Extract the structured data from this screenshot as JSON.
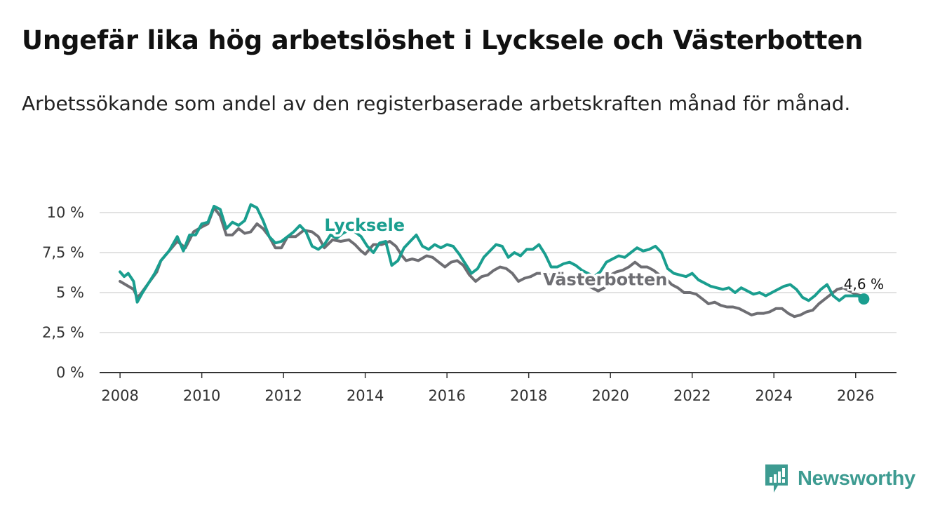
{
  "title": "Ungefär lika hög arbetslöshet i Lycksele och Västerbotten",
  "subtitle": "Arbetssökande som andel av den registerbaserade arbetskraften månad för månad.",
  "brand": {
    "name": "Newsworthy",
    "color": "#3d9b91",
    "icon": "newsworthy-logo-icon"
  },
  "chart_data": {
    "type": "line",
    "title": "Ungefär lika hög arbetslöshet i Lycksele och Västerbotten",
    "xlabel": "",
    "ylabel": "",
    "xlim": [
      2007.5,
      2027.0
    ],
    "ylim": [
      0,
      10
    ],
    "yticks": [
      0,
      2.5,
      5,
      7.5,
      10
    ],
    "ytick_labels": [
      "0 %",
      "2,5 %",
      "5 %",
      "7,5 %",
      "10 %"
    ],
    "xticks": [
      2008,
      2010,
      2012,
      2014,
      2016,
      2018,
      2020,
      2022,
      2024,
      2026
    ],
    "xtick_labels": [
      "2008",
      "2010",
      "2012",
      "2014",
      "2016",
      "2018",
      "2020",
      "2022",
      "2024",
      "2026"
    ],
    "grid": true,
    "series": [
      {
        "name": "Västerbotten",
        "label": "Västerbotten",
        "color": "#6e6e73",
        "points": [
          [
            2008.0,
            5.7
          ],
          [
            2008.2,
            5.4
          ],
          [
            2008.33,
            5.2
          ],
          [
            2008.42,
            4.7
          ],
          [
            2008.5,
            4.9
          ],
          [
            2008.7,
            5.6
          ],
          [
            2008.9,
            6.3
          ],
          [
            2009.0,
            7.0
          ],
          [
            2009.2,
            7.6
          ],
          [
            2009.4,
            8.2
          ],
          [
            2009.6,
            7.8
          ],
          [
            2009.8,
            8.8
          ],
          [
            2010.0,
            9.1
          ],
          [
            2010.15,
            9.3
          ],
          [
            2010.3,
            10.3
          ],
          [
            2010.45,
            9.8
          ],
          [
            2010.6,
            8.6
          ],
          [
            2010.75,
            8.6
          ],
          [
            2010.9,
            9.0
          ],
          [
            2011.05,
            8.7
          ],
          [
            2011.2,
            8.8
          ],
          [
            2011.35,
            9.3
          ],
          [
            2011.5,
            9.0
          ],
          [
            2011.65,
            8.5
          ],
          [
            2011.8,
            7.8
          ],
          [
            2011.95,
            7.8
          ],
          [
            2012.1,
            8.5
          ],
          [
            2012.3,
            8.5
          ],
          [
            2012.5,
            8.9
          ],
          [
            2012.7,
            8.8
          ],
          [
            2012.85,
            8.5
          ],
          [
            2013.0,
            7.8
          ],
          [
            2013.2,
            8.3
          ],
          [
            2013.4,
            8.2
          ],
          [
            2013.6,
            8.3
          ],
          [
            2013.75,
            8.0
          ],
          [
            2013.9,
            7.6
          ],
          [
            2014.0,
            7.4
          ],
          [
            2014.2,
            8.0
          ],
          [
            2014.4,
            8.0
          ],
          [
            2014.6,
            8.2
          ],
          [
            2014.75,
            7.9
          ],
          [
            2014.9,
            7.3
          ],
          [
            2015.0,
            7.0
          ],
          [
            2015.15,
            7.1
          ],
          [
            2015.3,
            7.0
          ],
          [
            2015.5,
            7.3
          ],
          [
            2015.65,
            7.2
          ],
          [
            2015.8,
            6.9
          ],
          [
            2015.95,
            6.6
          ],
          [
            2016.1,
            6.9
          ],
          [
            2016.25,
            7.0
          ],
          [
            2016.4,
            6.7
          ],
          [
            2016.55,
            6.1
          ],
          [
            2016.7,
            5.7
          ],
          [
            2016.85,
            6.0
          ],
          [
            2017.0,
            6.1
          ],
          [
            2017.15,
            6.4
          ],
          [
            2017.3,
            6.6
          ],
          [
            2017.45,
            6.5
          ],
          [
            2017.6,
            6.2
          ],
          [
            2017.75,
            5.7
          ],
          [
            2017.9,
            5.9
          ],
          [
            2018.05,
            6.0
          ],
          [
            2018.2,
            6.2
          ],
          [
            2018.35,
            6.2
          ],
          [
            2018.5,
            6.1
          ],
          [
            2018.65,
            5.6
          ],
          [
            2018.8,
            5.6
          ],
          [
            2018.95,
            5.7
          ],
          [
            2019.1,
            5.8
          ],
          [
            2019.25,
            5.6
          ],
          [
            2019.4,
            5.5
          ],
          [
            2019.55,
            5.3
          ],
          [
            2019.7,
            5.1
          ],
          [
            2019.85,
            5.3
          ],
          [
            2020.0,
            6.1
          ],
          [
            2020.15,
            6.3
          ],
          [
            2020.3,
            6.4
          ],
          [
            2020.45,
            6.6
          ],
          [
            2020.6,
            6.9
          ],
          [
            2020.75,
            6.6
          ],
          [
            2020.9,
            6.6
          ],
          [
            2021.05,
            6.4
          ],
          [
            2021.2,
            6.1
          ],
          [
            2021.35,
            5.9
          ],
          [
            2021.5,
            5.5
          ],
          [
            2021.65,
            5.3
          ],
          [
            2021.8,
            5.0
          ],
          [
            2021.95,
            5.0
          ],
          [
            2022.1,
            4.9
          ],
          [
            2022.25,
            4.6
          ],
          [
            2022.4,
            4.3
          ],
          [
            2022.55,
            4.4
          ],
          [
            2022.7,
            4.2
          ],
          [
            2022.85,
            4.1
          ],
          [
            2023.0,
            4.1
          ],
          [
            2023.15,
            4.0
          ],
          [
            2023.3,
            3.8
          ],
          [
            2023.45,
            3.6
          ],
          [
            2023.6,
            3.7
          ],
          [
            2023.75,
            3.7
          ],
          [
            2023.9,
            3.8
          ],
          [
            2024.05,
            4.0
          ],
          [
            2024.2,
            4.0
          ],
          [
            2024.35,
            3.7
          ],
          [
            2024.5,
            3.5
          ],
          [
            2024.65,
            3.6
          ],
          [
            2024.8,
            3.8
          ],
          [
            2024.95,
            3.9
          ],
          [
            2025.1,
            4.3
          ],
          [
            2025.25,
            4.6
          ],
          [
            2025.4,
            4.9
          ],
          [
            2025.55,
            5.2
          ],
          [
            2025.7,
            5.3
          ],
          [
            2025.85,
            5.1
          ],
          [
            2026.0,
            4.9
          ],
          [
            2026.15,
            4.8
          ]
        ]
      },
      {
        "name": "Lycksele",
        "label": "Lycksele",
        "color": "#1a9e8f",
        "points": [
          [
            2008.0,
            6.3
          ],
          [
            2008.1,
            6.0
          ],
          [
            2008.2,
            6.2
          ],
          [
            2008.33,
            5.7
          ],
          [
            2008.42,
            4.4
          ],
          [
            2008.55,
            5.0
          ],
          [
            2008.7,
            5.6
          ],
          [
            2008.85,
            6.2
          ],
          [
            2009.0,
            7.0
          ],
          [
            2009.2,
            7.6
          ],
          [
            2009.4,
            8.5
          ],
          [
            2009.55,
            7.6
          ],
          [
            2009.7,
            8.6
          ],
          [
            2009.85,
            8.6
          ],
          [
            2010.0,
            9.3
          ],
          [
            2010.15,
            9.4
          ],
          [
            2010.3,
            10.4
          ],
          [
            2010.45,
            10.2
          ],
          [
            2010.6,
            9.0
          ],
          [
            2010.75,
            9.4
          ],
          [
            2010.9,
            9.2
          ],
          [
            2011.05,
            9.5
          ],
          [
            2011.2,
            10.5
          ],
          [
            2011.35,
            10.3
          ],
          [
            2011.5,
            9.5
          ],
          [
            2011.65,
            8.5
          ],
          [
            2011.8,
            8.1
          ],
          [
            2011.95,
            8.2
          ],
          [
            2012.1,
            8.5
          ],
          [
            2012.25,
            8.8
          ],
          [
            2012.4,
            9.2
          ],
          [
            2012.55,
            8.8
          ],
          [
            2012.7,
            7.9
          ],
          [
            2012.85,
            7.7
          ],
          [
            2013.0,
            8.0
          ],
          [
            2013.15,
            8.6
          ],
          [
            2013.3,
            8.4
          ],
          [
            2013.45,
            8.7
          ],
          [
            2013.6,
            8.9
          ],
          [
            2013.75,
            8.8
          ],
          [
            2013.9,
            8.5
          ],
          [
            2014.05,
            7.9
          ],
          [
            2014.2,
            7.5
          ],
          [
            2014.35,
            8.1
          ],
          [
            2014.5,
            8.2
          ],
          [
            2014.65,
            6.7
          ],
          [
            2014.8,
            7.0
          ],
          [
            2014.95,
            7.8
          ],
          [
            2015.1,
            8.2
          ],
          [
            2015.25,
            8.6
          ],
          [
            2015.4,
            7.9
          ],
          [
            2015.55,
            7.7
          ],
          [
            2015.7,
            8.0
          ],
          [
            2015.85,
            7.8
          ],
          [
            2016.0,
            8.0
          ],
          [
            2016.15,
            7.9
          ],
          [
            2016.3,
            7.4
          ],
          [
            2016.45,
            6.8
          ],
          [
            2016.6,
            6.2
          ],
          [
            2016.75,
            6.5
          ],
          [
            2016.9,
            7.2
          ],
          [
            2017.05,
            7.6
          ],
          [
            2017.2,
            8.0
          ],
          [
            2017.35,
            7.9
          ],
          [
            2017.5,
            7.2
          ],
          [
            2017.65,
            7.5
          ],
          [
            2017.8,
            7.3
          ],
          [
            2017.95,
            7.7
          ],
          [
            2018.1,
            7.7
          ],
          [
            2018.25,
            8.0
          ],
          [
            2018.4,
            7.4
          ],
          [
            2018.55,
            6.6
          ],
          [
            2018.7,
            6.6
          ],
          [
            2018.85,
            6.8
          ],
          [
            2019.0,
            6.9
          ],
          [
            2019.15,
            6.7
          ],
          [
            2019.3,
            6.4
          ],
          [
            2019.45,
            6.2
          ],
          [
            2019.6,
            6.0
          ],
          [
            2019.75,
            6.3
          ],
          [
            2019.9,
            6.9
          ],
          [
            2020.05,
            7.1
          ],
          [
            2020.2,
            7.3
          ],
          [
            2020.35,
            7.2
          ],
          [
            2020.5,
            7.5
          ],
          [
            2020.65,
            7.8
          ],
          [
            2020.8,
            7.6
          ],
          [
            2020.95,
            7.7
          ],
          [
            2021.1,
            7.9
          ],
          [
            2021.25,
            7.5
          ],
          [
            2021.4,
            6.5
          ],
          [
            2021.55,
            6.2
          ],
          [
            2021.7,
            6.1
          ],
          [
            2021.85,
            6.0
          ],
          [
            2022.0,
            6.2
          ],
          [
            2022.15,
            5.8
          ],
          [
            2022.3,
            5.6
          ],
          [
            2022.45,
            5.4
          ],
          [
            2022.6,
            5.3
          ],
          [
            2022.75,
            5.2
          ],
          [
            2022.9,
            5.3
          ],
          [
            2023.05,
            5.0
          ],
          [
            2023.2,
            5.3
          ],
          [
            2023.35,
            5.1
          ],
          [
            2023.5,
            4.9
          ],
          [
            2023.65,
            5.0
          ],
          [
            2023.8,
            4.8
          ],
          [
            2023.95,
            5.0
          ],
          [
            2024.1,
            5.2
          ],
          [
            2024.25,
            5.4
          ],
          [
            2024.4,
            5.5
          ],
          [
            2024.55,
            5.2
          ],
          [
            2024.7,
            4.7
          ],
          [
            2024.85,
            4.5
          ],
          [
            2025.0,
            4.8
          ],
          [
            2025.15,
            5.2
          ],
          [
            2025.3,
            5.5
          ],
          [
            2025.45,
            4.8
          ],
          [
            2025.6,
            4.5
          ],
          [
            2025.75,
            4.8
          ],
          [
            2025.9,
            4.8
          ],
          [
            2026.05,
            4.8
          ],
          [
            2026.2,
            4.6
          ]
        ]
      }
    ],
    "annotations": [
      {
        "text": "4,6 %",
        "series": "Lycksele",
        "x": 2026.2,
        "y": 4.6
      }
    ]
  }
}
